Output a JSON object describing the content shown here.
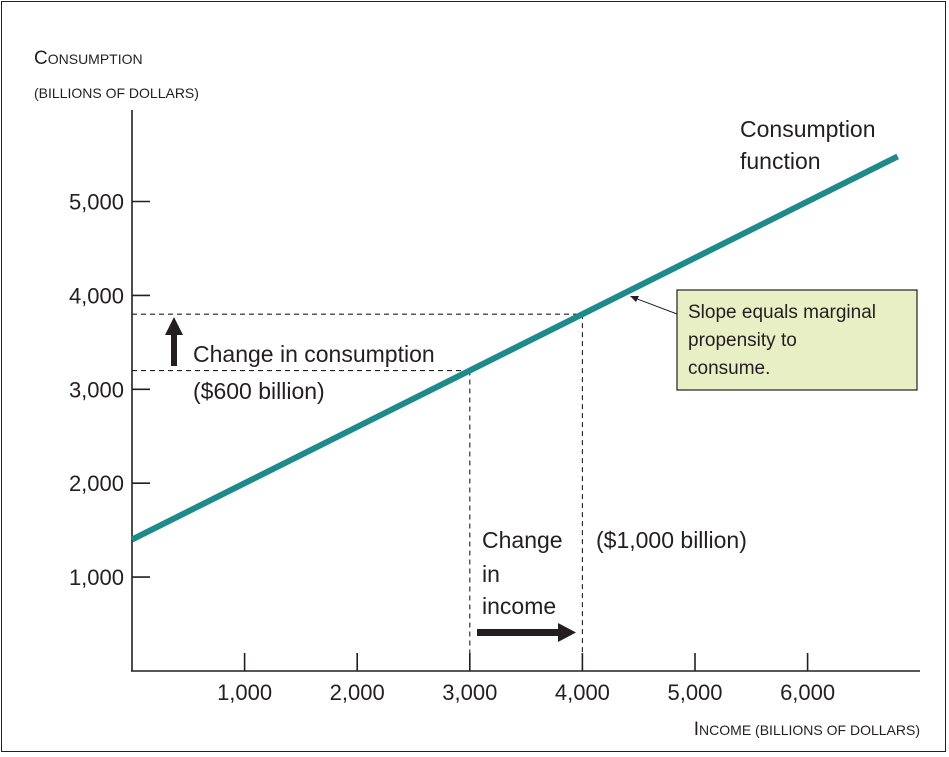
{
  "chart_data": {
    "type": "line",
    "ylabel_lines": [
      "Consumption",
      "(billions of dollars)"
    ],
    "xlabel": "Income (billions of dollars)",
    "xlim": [
      0,
      7000
    ],
    "ylim": [
      0,
      6000
    ],
    "x_ticks": [
      1000,
      2000,
      3000,
      4000,
      5000,
      6000
    ],
    "x_tick_labels": [
      "1,000",
      "2,000",
      "3,000",
      "4,000",
      "5,000",
      "6,000"
    ],
    "y_ticks": [
      1000,
      2000,
      3000,
      4000,
      5000
    ],
    "y_tick_labels": [
      "1,000",
      "2,000",
      "3,000",
      "4,000",
      "5,000"
    ],
    "series": [
      {
        "name": "Consumption function",
        "color": "#1f8a8a",
        "x": [
          0,
          6800
        ],
        "y": [
          1400,
          5480
        ]
      }
    ],
    "reference_points": [
      {
        "x": 3000,
        "y": 3200
      },
      {
        "x": 4000,
        "y": 3800
      }
    ],
    "series_label_lines": [
      "Consumption",
      "function"
    ],
    "annotations": {
      "consumption_change_lines": [
        "Change in consumption",
        "($600 billion)"
      ],
      "income_change_lines": [
        "Change",
        "in",
        "income"
      ],
      "income_change_amount": "($1,000 billion)",
      "callout_lines": [
        "Slope equals marginal",
        "propensity to",
        "consume."
      ],
      "callout_fill": "#e8efc4"
    }
  }
}
